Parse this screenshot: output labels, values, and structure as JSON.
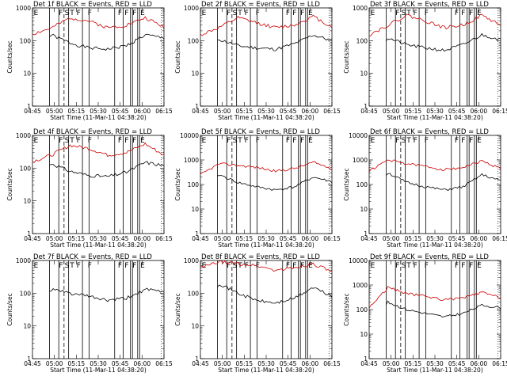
{
  "figure": {
    "x_axis_label": "Start Time (11-Mar-11 04:38:20)",
    "y_axis_label": "Counts/sec",
    "x_tick_labels": [
      "04:45",
      "05:00",
      "05:15",
      "05:30",
      "05:45",
      "06:00",
      "06:15"
    ],
    "y_tick_labels_small": [
      "1",
      "10",
      "100",
      "1000"
    ],
    "y_tick_labels_large": [
      "1",
      "10",
      "100",
      "1000",
      "10000"
    ],
    "flag_labels": [
      "E",
      "F",
      "S",
      "T",
      "F",
      "F",
      "F",
      "F",
      "F",
      "E"
    ]
  },
  "chart_data": [
    {
      "type": "line",
      "title": "Det 1f BLACK = Events, RED = LLD",
      "xlabel": "Start Time (11-Mar-11 04:38:20)",
      "ylabel": "Counts/sec",
      "yscale": "log",
      "ylim": [
        1,
        1000
      ],
      "x": [
        "04:45",
        "04:58",
        "05:11",
        "05:24",
        "05:37",
        "05:50",
        "06:03",
        "06:15"
      ],
      "series": [
        {
          "name": "Events",
          "color": "#000000",
          "values": [
            30,
            150,
            85,
            60,
            55,
            70,
            150,
            120
          ]
        },
        {
          "name": "LLD",
          "color": "#cc0000",
          "values": [
            160,
            240,
            500,
            400,
            250,
            300,
            500,
            260
          ]
        }
      ]
    },
    {
      "type": "line",
      "title": "Det 2f BLACK = Events, RED = LLD",
      "xlabel": "Start Time (11-Mar-11 04:38:20)",
      "ylabel": "Counts/sec",
      "yscale": "log",
      "ylim": [
        1,
        1000
      ],
      "x": [
        "04:45",
        "04:58",
        "05:11",
        "05:24",
        "05:37",
        "05:50",
        "06:03",
        "06:15"
      ],
      "series": [
        {
          "name": "Events",
          "color": "#000000",
          "values": [
            30,
            110,
            70,
            60,
            55,
            80,
            150,
            100
          ]
        },
        {
          "name": "LLD",
          "color": "#cc0000",
          "values": [
            150,
            250,
            500,
            350,
            250,
            300,
            550,
            260
          ]
        }
      ]
    },
    {
      "type": "line",
      "title": "Det 3f BLACK = Events, RED = LLD",
      "xlabel": "Start Time (11-Mar-11 04:38:20)",
      "ylabel": "Counts/sec",
      "yscale": "log",
      "ylim": [
        1,
        1000
      ],
      "x": [
        "04:45",
        "04:58",
        "05:11",
        "05:24",
        "05:37",
        "05:50",
        "06:03",
        "06:15"
      ],
      "series": [
        {
          "name": "Events",
          "color": "#000000",
          "values": [
            30,
            120,
            75,
            60,
            50,
            75,
            150,
            110
          ]
        },
        {
          "name": "LLD",
          "color": "#cc0000",
          "values": [
            150,
            300,
            600,
            400,
            250,
            300,
            600,
            300
          ]
        }
      ]
    },
    {
      "type": "line",
      "title": "Det 4f BLACK = Events, RED = LLD",
      "xlabel": "Start Time (11-Mar-11 04:38:20)",
      "ylabel": "Counts/sec",
      "yscale": "log",
      "ylim": [
        1,
        1000
      ],
      "x": [
        "04:45",
        "04:58",
        "05:11",
        "05:24",
        "05:37",
        "05:50",
        "06:03",
        "06:15"
      ],
      "series": [
        {
          "name": "Events",
          "color": "#000000",
          "values": [
            30,
            140,
            80,
            60,
            55,
            75,
            150,
            120
          ]
        },
        {
          "name": "LLD",
          "color": "#cc0000",
          "values": [
            160,
            250,
            500,
            400,
            250,
            300,
            550,
            250
          ]
        }
      ]
    },
    {
      "type": "line",
      "title": "Det 5f BLACK = Events, RED = LLD",
      "xlabel": "Start Time (11-Mar-11 04:38:20)",
      "ylabel": "Counts/sec",
      "yscale": "log",
      "ylim": [
        1,
        10000
      ],
      "x": [
        "04:45",
        "04:58",
        "05:11",
        "05:24",
        "05:37",
        "05:50",
        "06:03",
        "06:15"
      ],
      "series": [
        {
          "name": "Events",
          "color": "#000000",
          "values": [
            40,
            250,
            120,
            80,
            60,
            80,
            200,
            130
          ]
        },
        {
          "name": "LLD",
          "color": "#cc0000",
          "values": [
            250,
            700,
            600,
            500,
            350,
            450,
            800,
            450
          ]
        }
      ]
    },
    {
      "type": "line",
      "title": "Det 6f BLACK = Events, RED = LLD",
      "xlabel": "Start Time (11-Mar-11 04:38:20)",
      "ylabel": "Counts/sec",
      "yscale": "log",
      "ylim": [
        1,
        10000
      ],
      "x": [
        "04:45",
        "04:58",
        "05:11",
        "05:24",
        "05:37",
        "05:50",
        "06:03",
        "06:15"
      ],
      "series": [
        {
          "name": "Events",
          "color": "#000000",
          "values": [
            40,
            300,
            120,
            80,
            60,
            80,
            250,
            140
          ]
        },
        {
          "name": "LLD",
          "color": "#cc0000",
          "values": [
            350,
            1000,
            700,
            550,
            400,
            500,
            900,
            450
          ]
        }
      ]
    },
    {
      "type": "line",
      "title": "Det 7f BLACK = Events, RED = LLD",
      "xlabel": "Start Time (11-Mar-11 04:38:20)",
      "ylabel": "Counts/sec",
      "yscale": "log",
      "ylim": [
        1,
        1000
      ],
      "x": [
        "04:45",
        "04:58",
        "05:11",
        "05:24",
        "05:37",
        "05:50",
        "06:03",
        "06:15"
      ],
      "series": [
        {
          "name": "Events",
          "color": "#000000",
          "values": [
            20,
            130,
            100,
            80,
            60,
            70,
            130,
            110
          ]
        }
      ]
    },
    {
      "type": "line",
      "title": "Det 8f BLACK = Events, RED = LLD",
      "xlabel": "Start Time (11-Mar-11 04:38:20)",
      "ylabel": "Counts/sec",
      "yscale": "log",
      "ylim": [
        1,
        1000
      ],
      "x": [
        "04:45",
        "04:58",
        "05:11",
        "05:24",
        "05:37",
        "05:50",
        "06:03",
        "06:15"
      ],
      "series": [
        {
          "name": "Events",
          "color": "#000000",
          "values": [
            40,
            200,
            100,
            60,
            50,
            70,
            150,
            80
          ]
        },
        {
          "name": "LLD",
          "color": "#cc0000",
          "values": [
            600,
            900,
            800,
            700,
            500,
            600,
            800,
            450
          ]
        }
      ]
    },
    {
      "type": "line",
      "title": "Det 9f BLACK = Events, RED = LLD",
      "xlabel": "Start Time (11-Mar-11 04:38:20)",
      "ylabel": "Counts/sec",
      "yscale": "log",
      "ylim": [
        1,
        10000
      ],
      "x": [
        "04:45",
        "04:58",
        "05:11",
        "05:24",
        "05:37",
        "05:50",
        "06:03",
        "06:15"
      ],
      "series": [
        {
          "name": "Events",
          "color": "#000000",
          "values": [
            20,
            200,
            100,
            70,
            50,
            70,
            150,
            120
          ]
        },
        {
          "name": "LLD",
          "color": "#cc0000",
          "values": [
            120,
            800,
            450,
            350,
            250,
            300,
            500,
            300
          ]
        }
      ]
    }
  ]
}
